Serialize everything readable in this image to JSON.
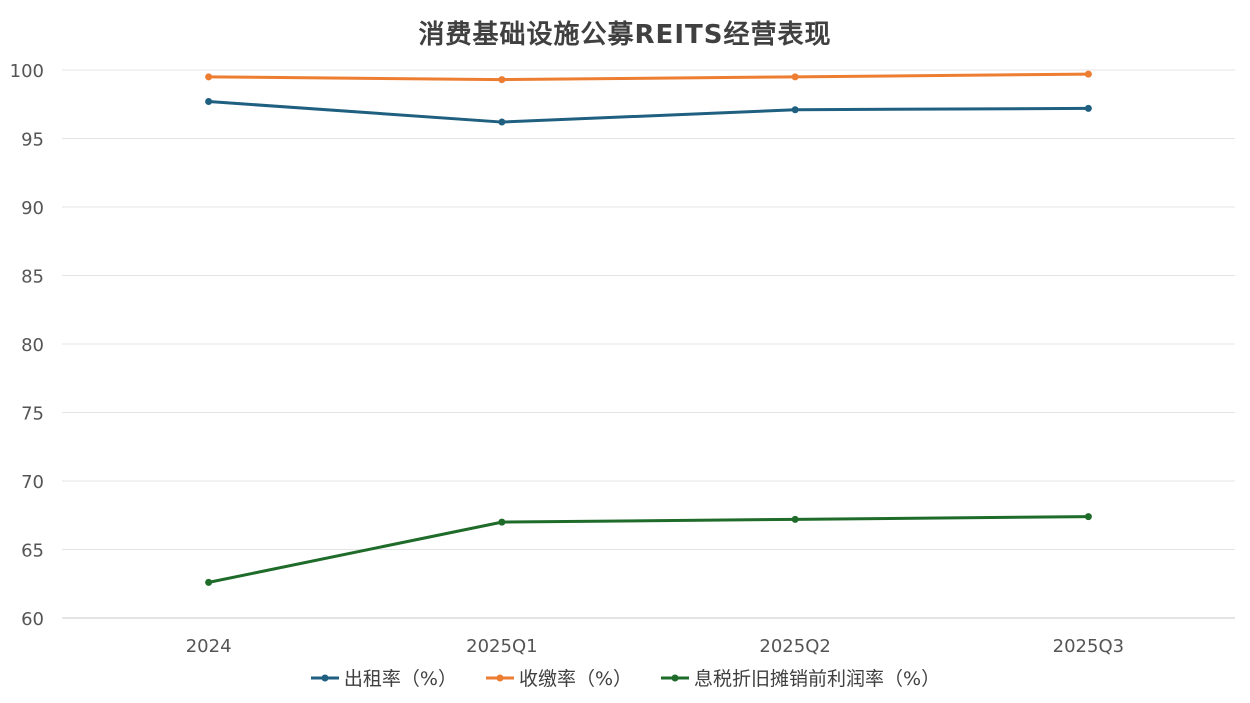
{
  "chart_data": {
    "type": "line",
    "title": "消费基础设施公募REITS经营表现",
    "categories": [
      "2024",
      "2025Q1",
      "2025Q2",
      "2025Q3"
    ],
    "series": [
      {
        "name": "出租率（%）",
        "color": "#1f5f80",
        "values": [
          97.7,
          96.2,
          97.1,
          97.2
        ]
      },
      {
        "name": "收缴率（%）",
        "color": "#ed7d31",
        "values": [
          99.5,
          99.3,
          99.5,
          99.7
        ]
      },
      {
        "name": "息税折旧摊销前利润率（%）",
        "color": "#1e6b2a",
        "values": [
          62.6,
          67.0,
          67.2,
          67.4
        ]
      }
    ],
    "ylim": [
      60,
      100
    ],
    "yticks": [
      "60",
      "65",
      "70",
      "75",
      "80",
      "85",
      "90",
      "95",
      "100"
    ],
    "grid": true,
    "legend_position": "bottom"
  }
}
